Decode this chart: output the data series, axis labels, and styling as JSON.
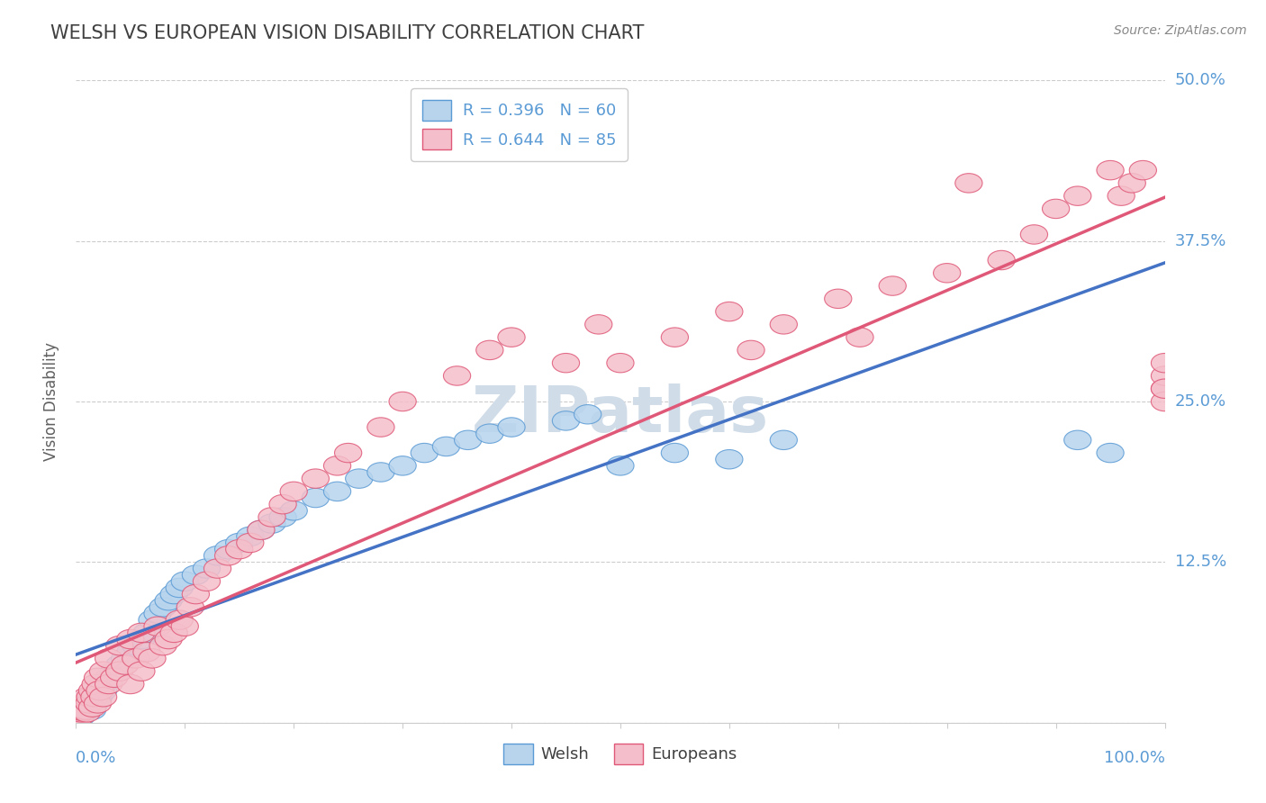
{
  "title": "WELSH VS EUROPEAN VISION DISABILITY CORRELATION CHART",
  "source": "Source: ZipAtlas.com",
  "ylabel": "Vision Disability",
  "xlim": [
    0,
    100
  ],
  "ylim": [
    0,
    50
  ],
  "yticks": [
    0,
    12.5,
    25.0,
    37.5,
    50.0
  ],
  "ytick_labels": [
    "",
    "12.5%",
    "25.0%",
    "37.5%",
    "50.0%"
  ],
  "welsh_R": 0.396,
  "welsh_N": 60,
  "european_R": 0.644,
  "european_N": 85,
  "welsh_fill_color": "#b8d4ed",
  "european_fill_color": "#f4bfca",
  "welsh_edge_color": "#5b9bd5",
  "european_edge_color": "#e05878",
  "welsh_line_color": "#4472c4",
  "european_line_color": "#e05878",
  "watermark_color": "#d0dce8",
  "background_color": "#ffffff",
  "title_color": "#404040",
  "axis_label_color": "#5b9bd5",
  "grid_color": "#cccccc",
  "source_color": "#888888",
  "ylabel_color": "#606060",
  "bottom_legend_color": "#404040",
  "title_fontsize": 15,
  "source_fontsize": 10,
  "tick_label_fontsize": 13,
  "ylabel_fontsize": 12,
  "legend_fontsize": 13,
  "watermark_fontsize": 52,
  "welsh_x": [
    0.3,
    0.4,
    0.5,
    0.6,
    0.7,
    0.8,
    0.9,
    1.0,
    1.1,
    1.2,
    1.5,
    1.5,
    1.7,
    2.0,
    2.2,
    2.5,
    2.5,
    3.0,
    3.5,
    4.0,
    4.5,
    5.0,
    5.5,
    6.0,
    6.5,
    7.0,
    7.5,
    8.0,
    8.5,
    9.0,
    9.5,
    10.0,
    11.0,
    12.0,
    13.0,
    14.0,
    15.0,
    16.0,
    17.0,
    18.0,
    19.0,
    20.0,
    22.0,
    24.0,
    26.0,
    28.0,
    30.0,
    32.0,
    34.0,
    36.0,
    38.0,
    40.0,
    45.0,
    47.0,
    50.0,
    55.0,
    60.0,
    65.0,
    92.0,
    95.0
  ],
  "welsh_y": [
    0.5,
    0.8,
    0.5,
    1.0,
    0.8,
    1.2,
    0.9,
    1.5,
    1.0,
    1.3,
    1.0,
    2.0,
    1.5,
    1.8,
    2.2,
    2.5,
    3.0,
    3.5,
    4.0,
    4.5,
    5.0,
    5.5,
    6.0,
    6.5,
    7.0,
    8.0,
    8.5,
    9.0,
    9.5,
    10.0,
    10.5,
    11.0,
    11.5,
    12.0,
    13.0,
    13.5,
    14.0,
    14.5,
    15.0,
    15.5,
    16.0,
    16.5,
    17.5,
    18.0,
    19.0,
    19.5,
    20.0,
    21.0,
    21.5,
    22.0,
    22.5,
    23.0,
    23.5,
    24.0,
    20.0,
    21.0,
    20.5,
    22.0,
    22.0,
    21.0
  ],
  "european_x": [
    0.2,
    0.3,
    0.4,
    0.5,
    0.5,
    0.6,
    0.7,
    0.8,
    0.9,
    1.0,
    1.0,
    1.2,
    1.3,
    1.5,
    1.5,
    1.7,
    1.8,
    2.0,
    2.0,
    2.2,
    2.5,
    2.5,
    3.0,
    3.0,
    3.5,
    4.0,
    4.0,
    4.5,
    5.0,
    5.0,
    5.5,
    6.0,
    6.0,
    6.5,
    7.0,
    7.5,
    8.0,
    8.5,
    9.0,
    9.5,
    10.0,
    10.5,
    11.0,
    12.0,
    13.0,
    14.0,
    15.0,
    16.0,
    17.0,
    18.0,
    19.0,
    20.0,
    22.0,
    24.0,
    25.0,
    28.0,
    30.0,
    35.0,
    38.0,
    40.0,
    45.0,
    48.0,
    50.0,
    55.0,
    60.0,
    62.0,
    65.0,
    70.0,
    72.0,
    75.0,
    80.0,
    82.0,
    85.0,
    88.0,
    90.0,
    92.0,
    95.0,
    96.0,
    97.0,
    98.0,
    100.0,
    100.0,
    100.0,
    100.0,
    100.0
  ],
  "european_y": [
    0.5,
    0.8,
    0.5,
    0.8,
    1.2,
    0.9,
    1.0,
    1.5,
    1.0,
    0.8,
    2.0,
    1.5,
    2.0,
    1.2,
    2.5,
    2.0,
    3.0,
    1.5,
    3.5,
    2.5,
    2.0,
    4.0,
    3.0,
    5.0,
    3.5,
    4.0,
    6.0,
    4.5,
    3.0,
    6.5,
    5.0,
    4.0,
    7.0,
    5.5,
    5.0,
    7.5,
    6.0,
    6.5,
    7.0,
    8.0,
    7.5,
    9.0,
    10.0,
    11.0,
    12.0,
    13.0,
    13.5,
    14.0,
    15.0,
    16.0,
    17.0,
    18.0,
    19.0,
    20.0,
    21.0,
    23.0,
    25.0,
    27.0,
    29.0,
    30.0,
    28.0,
    31.0,
    28.0,
    30.0,
    32.0,
    29.0,
    31.0,
    33.0,
    30.0,
    34.0,
    35.0,
    42.0,
    36.0,
    38.0,
    40.0,
    41.0,
    43.0,
    41.0,
    42.0,
    43.0,
    26.0,
    27.0,
    28.0,
    25.0,
    26.0
  ]
}
